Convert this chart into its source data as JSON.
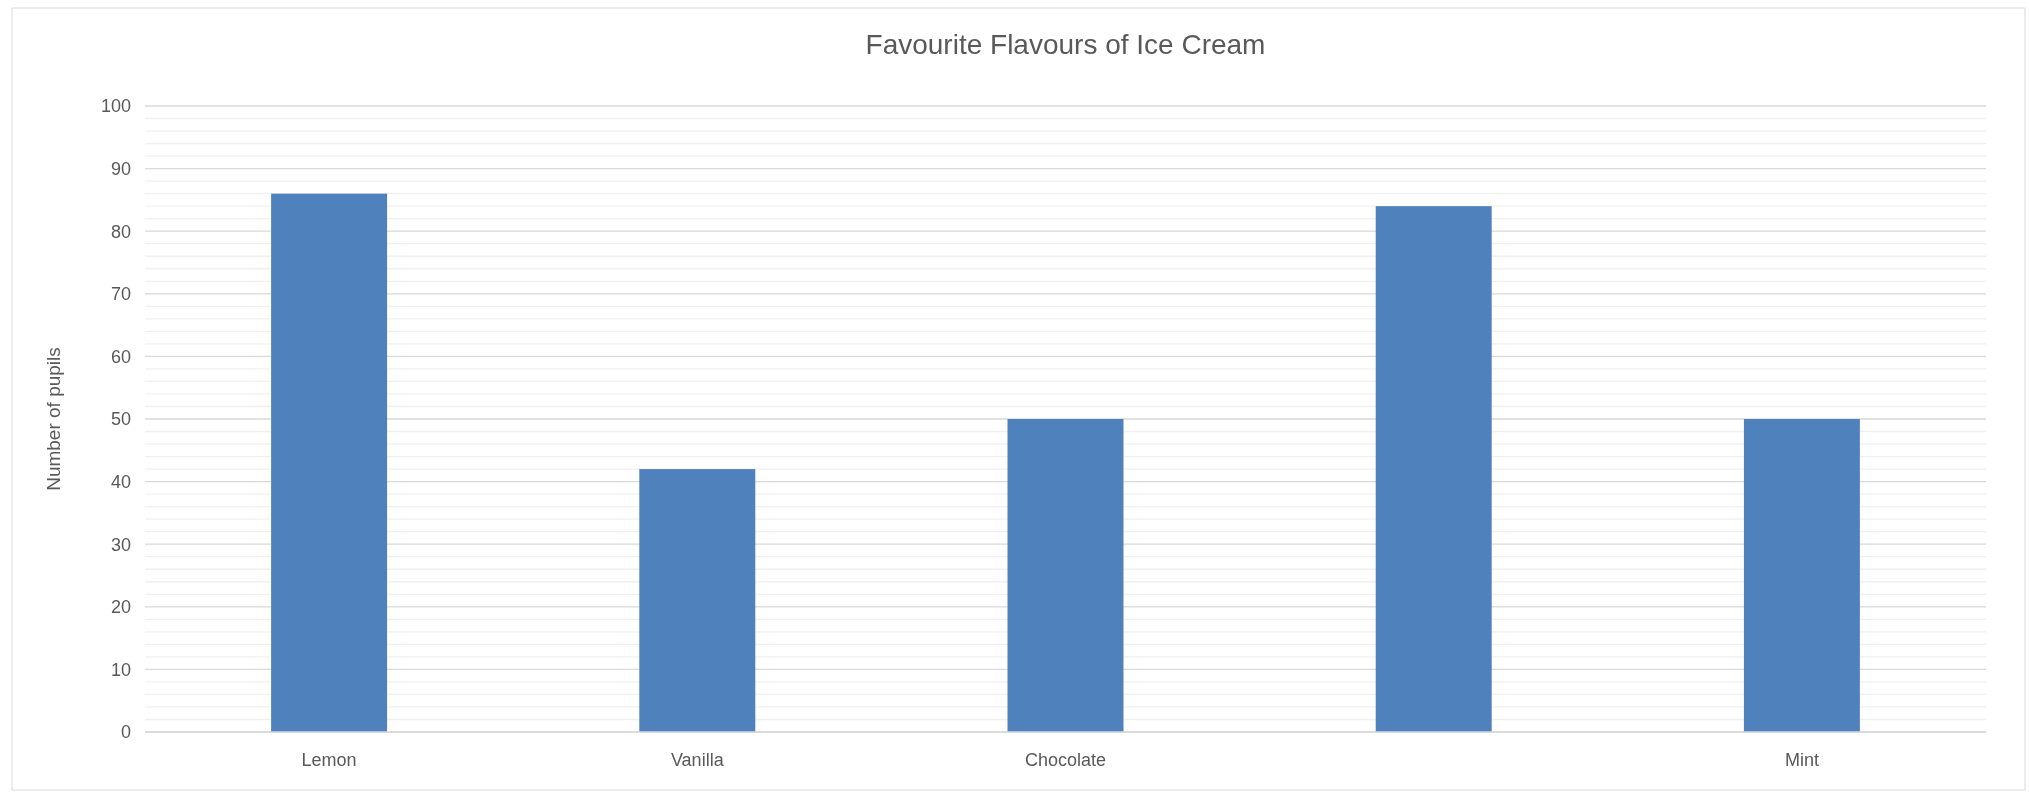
{
  "chart_data": {
    "type": "bar",
    "title": "Favourite Flavours of Ice Cream",
    "ylabel": "Number of pupils",
    "categories": [
      "Lemon",
      "Vanilla",
      "Chocolate",
      null,
      "Mint"
    ],
    "values": [
      86,
      42,
      50,
      84,
      50
    ],
    "color": "#4f81bd",
    "ylim": [
      0,
      100
    ],
    "yticks": [
      0,
      {
        "value": 2,
        "label": null
      },
      {
        "value": 4,
        "label": null
      },
      {
        "value": 6,
        "label": null
      },
      {
        "value": 8,
        "label": null
      },
      10,
      {
        "value": 12,
        "label": null
      },
      {
        "value": 14,
        "label": null
      },
      {
        "value": 16,
        "label": null
      },
      {
        "value": 18,
        "label": null
      },
      20,
      {
        "value": 22,
        "label": null
      },
      {
        "value": 24,
        "label": null
      },
      {
        "value": 26,
        "label": null
      },
      {
        "value": 28,
        "label": null
      },
      30,
      {
        "value": 32,
        "label": null
      },
      {
        "value": 34,
        "label": null
      },
      {
        "value": 36,
        "label": null
      },
      {
        "value": 38,
        "label": null
      },
      40,
      {
        "value": 42,
        "label": null
      },
      {
        "value": 44,
        "label": null
      },
      {
        "value": 46,
        "label": null
      },
      {
        "value": 48,
        "label": null
      },
      50,
      {
        "value": 52,
        "label": null
      },
      {
        "value": 54,
        "label": null
      },
      {
        "value": 56,
        "label": null
      },
      {
        "value": 58,
        "label": null
      },
      60,
      {
        "value": 62,
        "label": null
      },
      {
        "value": 64,
        "label": null
      },
      {
        "value": 66,
        "label": null
      },
      {
        "value": 68,
        "label": null
      },
      70,
      {
        "value": 72,
        "label": null
      },
      {
        "value": 74,
        "label": null
      },
      {
        "value": 76,
        "label": null
      },
      {
        "value": 78,
        "label": null
      },
      80,
      {
        "value": 82,
        "label": null
      },
      {
        "value": 84,
        "label": null
      },
      {
        "value": 86,
        "label": null
      },
      {
        "value": 88,
        "label": null
      },
      90,
      {
        "value": 92,
        "label": null
      },
      {
        "value": 94,
        "label": null
      },
      {
        "value": 96,
        "label": null
      },
      {
        "value": 98,
        "label": null
      },
      100
    ],
    "grid": true
  }
}
